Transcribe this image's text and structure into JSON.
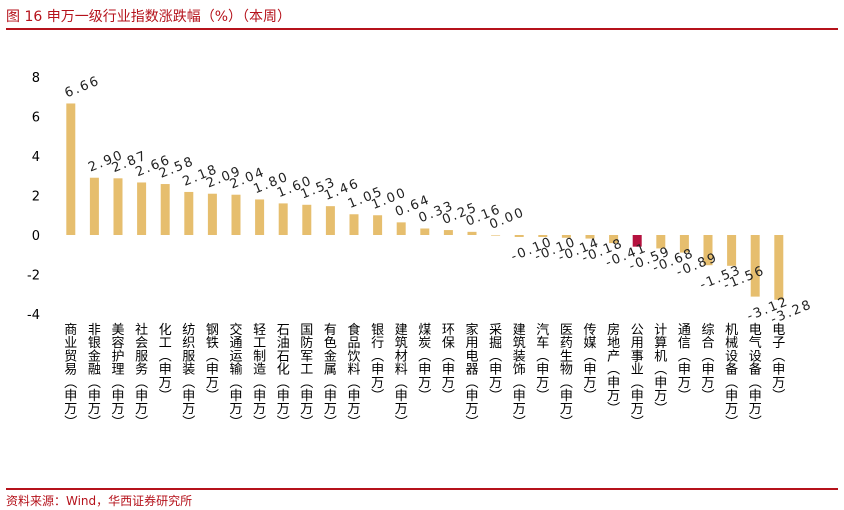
{
  "header": {
    "title": "图 16 申万一级行业指数涨跌幅（%）（本周）"
  },
  "footer": {
    "source": "资料来源：Wind，华西证券研究所"
  },
  "colors": {
    "bar": "#E6BE6E",
    "highlight": "#B5123F",
    "accent": "#B5121B",
    "axis": "#000000"
  },
  "chart_data": {
    "type": "bar",
    "title": "申万一级行业指数涨跌幅（%）（本周）",
    "ylim": [
      -4,
      8
    ],
    "yticks": [
      -4,
      -2,
      0,
      2,
      4,
      6,
      8
    ],
    "grid": false,
    "highlight_index": 24,
    "categories": [
      "商业贸易(申万)",
      "非银金融(申万)",
      "美容护理(申万)",
      "社会服务(申万)",
      "化工(申万)",
      "纺织服装(申万)",
      "钢铁(申万)",
      "交通运输(申万)",
      "轻工制造(申万)",
      "石油石化(申万)",
      "国防军工(申万)",
      "有色金属(申万)",
      "食品饮料(申万)",
      "银行(申万)",
      "建筑材料(申万)",
      "煤炭(申万)",
      "环保(申万)",
      "家用电器(申万)",
      "采掘(申万)",
      "建筑装饰(申万)",
      "汽车(申万)",
      "医药生物(申万)",
      "传媒(申万)",
      "房地产(申万)",
      "公用事业(申万)",
      "计算机(申万)",
      "通信(申万)",
      "综合(申万)",
      "机械设备(申万)",
      "电气设备(申万)",
      "电子(申万)"
    ],
    "values": [
      6.66,
      2.9,
      2.87,
      2.66,
      2.58,
      2.18,
      2.09,
      2.04,
      1.8,
      1.6,
      1.53,
      1.46,
      1.05,
      1.0,
      0.64,
      0.33,
      0.25,
      0.16,
      0.0,
      -0.1,
      -0.1,
      -0.14,
      -0.18,
      -0.41,
      -0.59,
      -0.68,
      -0.89,
      -1.53,
      -1.56,
      -3.12,
      -3.28
    ],
    "data_labels": [
      "6.66",
      "2.90",
      "2.87",
      "2.66",
      "2.58",
      "2.18",
      "2.09",
      "2.04",
      "1.80",
      "1.60",
      "1.53",
      "1.46",
      "1.05",
      "1.00",
      "0.64",
      "0.33",
      "0.25",
      "0.16",
      "0.00",
      "-0.10",
      "-0.10",
      "-0.14",
      "-0.18",
      "-0.41",
      "-0.59",
      "-0.68",
      "-0.89",
      "-1.53",
      "-1.56",
      "-3.12",
      "-3.28"
    ]
  }
}
